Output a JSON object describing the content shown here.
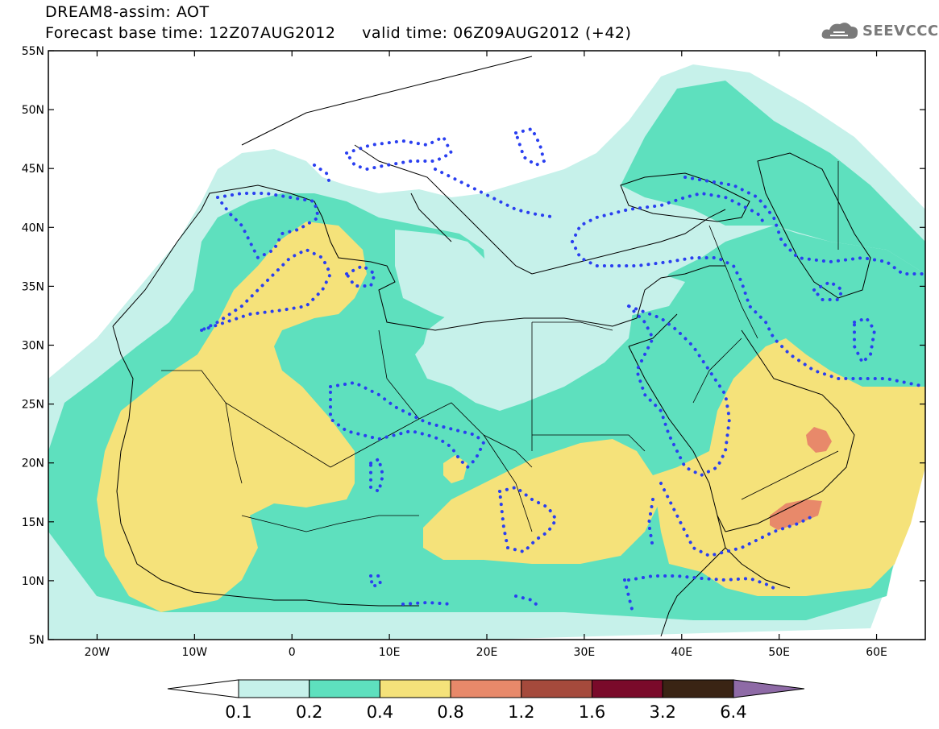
{
  "header": {
    "line1": "DREAM8-assim: AOT",
    "line2": "Forecast base time: 12Z07AUG2012     valid time: 06Z09AUG2012 (+42)"
  },
  "logo": {
    "text": "SEEVCCC",
    "icon": "cloud-icon"
  },
  "map": {
    "lat_labels": [
      "55N",
      "50N",
      "45N",
      "40N",
      "35N",
      "30N",
      "25N",
      "20N",
      "15N",
      "10N",
      "5N"
    ],
    "lon_labels": [
      "20W",
      "10W",
      "0",
      "10E",
      "20E",
      "30E",
      "40E",
      "50E",
      "60E"
    ],
    "lat_range": [
      5,
      55
    ],
    "lon_range": [
      -25,
      65
    ]
  },
  "colorbar": {
    "labels": [
      "0.1",
      "0.2",
      "0.4",
      "0.8",
      "1.2",
      "1.6",
      "3.2",
      "6.4"
    ],
    "colors": [
      "#ffffff",
      "#c6f1ea",
      "#5ee0be",
      "#f5e27a",
      "#e8896a",
      "#a54a3c",
      "#7a0a2a",
      "#3a2414",
      "#8e6aa6"
    ]
  }
}
